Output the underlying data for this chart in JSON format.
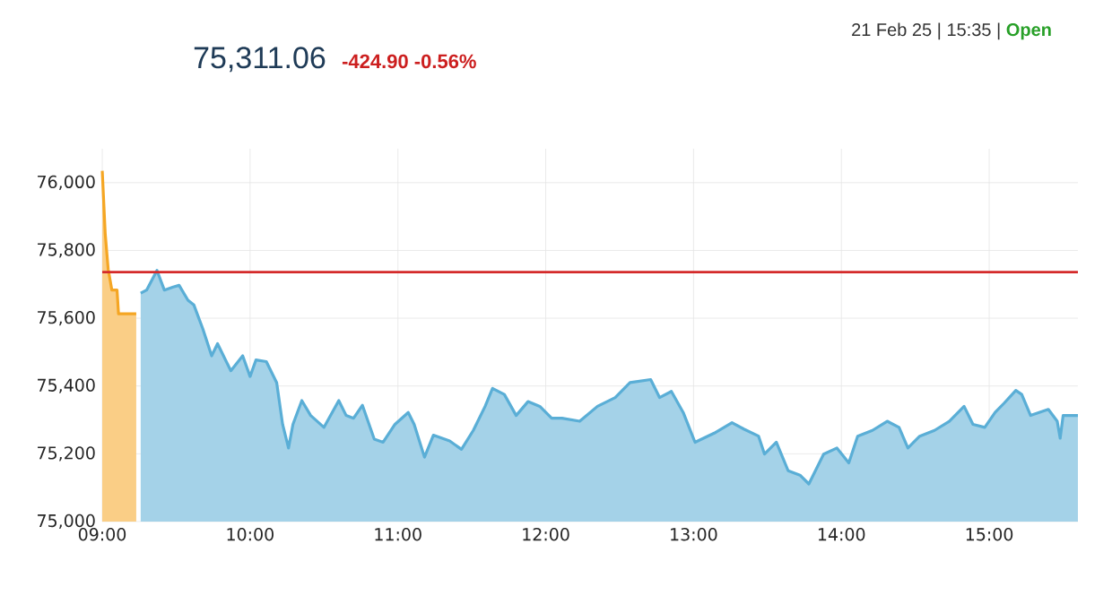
{
  "chart_data": {
    "type": "area",
    "title": "75,311.06",
    "subtitle": "-424.90 -0.56%",
    "annotations": [
      "21 Feb 25 | 15:35 |",
      "Open"
    ],
    "series": [
      {
        "color": "#f5a623",
        "x": [
          9.0,
          9.02,
          9.04,
          9.065,
          9.1,
          9.11,
          9.23
        ],
        "values": [
          76035,
          75850,
          75745,
          75683,
          75683,
          75613,
          75613
        ]
      },
      {
        "color": "#5aaed6",
        "x": [
          9.26,
          9.3,
          9.37,
          9.42,
          9.48,
          9.52,
          9.58,
          9.62,
          9.68,
          9.74,
          9.78,
          9.87,
          9.95,
          10.0,
          10.04,
          10.11,
          10.18,
          10.22,
          10.26,
          10.29,
          10.35,
          10.41,
          10.5,
          10.6,
          10.65,
          10.7,
          10.76,
          10.84,
          10.9,
          10.98,
          11.07,
          11.11,
          11.18,
          11.24,
          11.35,
          11.43,
          11.51,
          11.59,
          11.64,
          11.72,
          11.8,
          11.88,
          11.96,
          12.04,
          12.11,
          12.23,
          12.35,
          12.47,
          12.57,
          12.71,
          12.77,
          12.85,
          12.93,
          13.01,
          13.14,
          13.26,
          13.34,
          13.44,
          13.48,
          13.56,
          13.64,
          13.72,
          13.78,
          13.88,
          13.97,
          14.05,
          14.11,
          14.21,
          14.31,
          14.39,
          14.45,
          14.53,
          14.63,
          14.73,
          14.83,
          14.89,
          14.97,
          15.04,
          15.1,
          15.18,
          15.22,
          15.28,
          15.4,
          15.46,
          15.48,
          15.5,
          15.6
        ],
        "values": [
          75674,
          75683,
          75741,
          75683,
          75692,
          75697,
          75653,
          75639,
          75569,
          75489,
          75525,
          75445,
          75489,
          75428,
          75477,
          75472,
          75410,
          75287,
          75217,
          75287,
          75357,
          75313,
          75278,
          75357,
          75313,
          75305,
          75343,
          75243,
          75234,
          75287,
          75322,
          75287,
          75190,
          75255,
          75238,
          75213,
          75269,
          75340,
          75393,
          75375,
          75313,
          75354,
          75340,
          75305,
          75305,
          75296,
          75340,
          75366,
          75410,
          75419,
          75366,
          75384,
          75322,
          75234,
          75261,
          75292,
          75273,
          75252,
          75199,
          75234,
          75150,
          75137,
          75111,
          75199,
          75217,
          75173,
          75252,
          75269,
          75296,
          75278,
          75217,
          75252,
          75269,
          75296,
          75340,
          75287,
          75278,
          75322,
          75349,
          75387,
          75375,
          75313,
          75331,
          75296,
          75246,
          75313,
          75313
        ]
      }
    ],
    "ref_lines": [
      {
        "axis": "y",
        "value": 75736,
        "color": "#d42a2a"
      }
    ],
    "xlim": [
      9,
      15.6
    ],
    "ylim": [
      75000,
      76100
    ],
    "xticks": [
      {
        "value": 9,
        "label": "09:00"
      },
      {
        "value": 10,
        "label": "10:00"
      },
      {
        "value": 11,
        "label": "11:00"
      },
      {
        "value": 12,
        "label": "12:00"
      },
      {
        "value": 13,
        "label": "13:00"
      },
      {
        "value": 14,
        "label": "14:00"
      },
      {
        "value": 15,
        "label": "15:00"
      }
    ],
    "yticks": [
      {
        "value": 75000,
        "label": "75,000"
      },
      {
        "value": 75200,
        "label": "75,200"
      },
      {
        "value": 75400,
        "label": "75,400"
      },
      {
        "value": 75600,
        "label": "75,600"
      },
      {
        "value": 75800,
        "label": "75,800"
      },
      {
        "value": 76000,
        "label": "76,000"
      }
    ],
    "grid": true
  }
}
